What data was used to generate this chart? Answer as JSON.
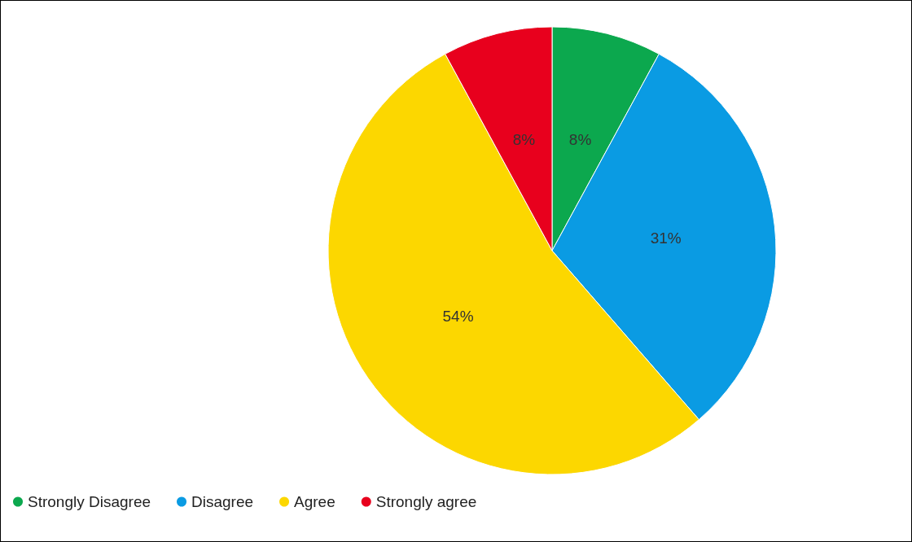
{
  "chart_data": {
    "type": "pie",
    "categories": [
      "Strongly Disagree",
      "Disagree",
      "Agree",
      "Strongly agree"
    ],
    "values": [
      8,
      31,
      54,
      8
    ],
    "colors": [
      "#0ca84e",
      "#0a9be3",
      "#fcd700",
      "#e8001d"
    ],
    "value_labels": [
      "8%",
      "31%",
      "54%",
      "8%"
    ],
    "legend": "bottom left"
  }
}
